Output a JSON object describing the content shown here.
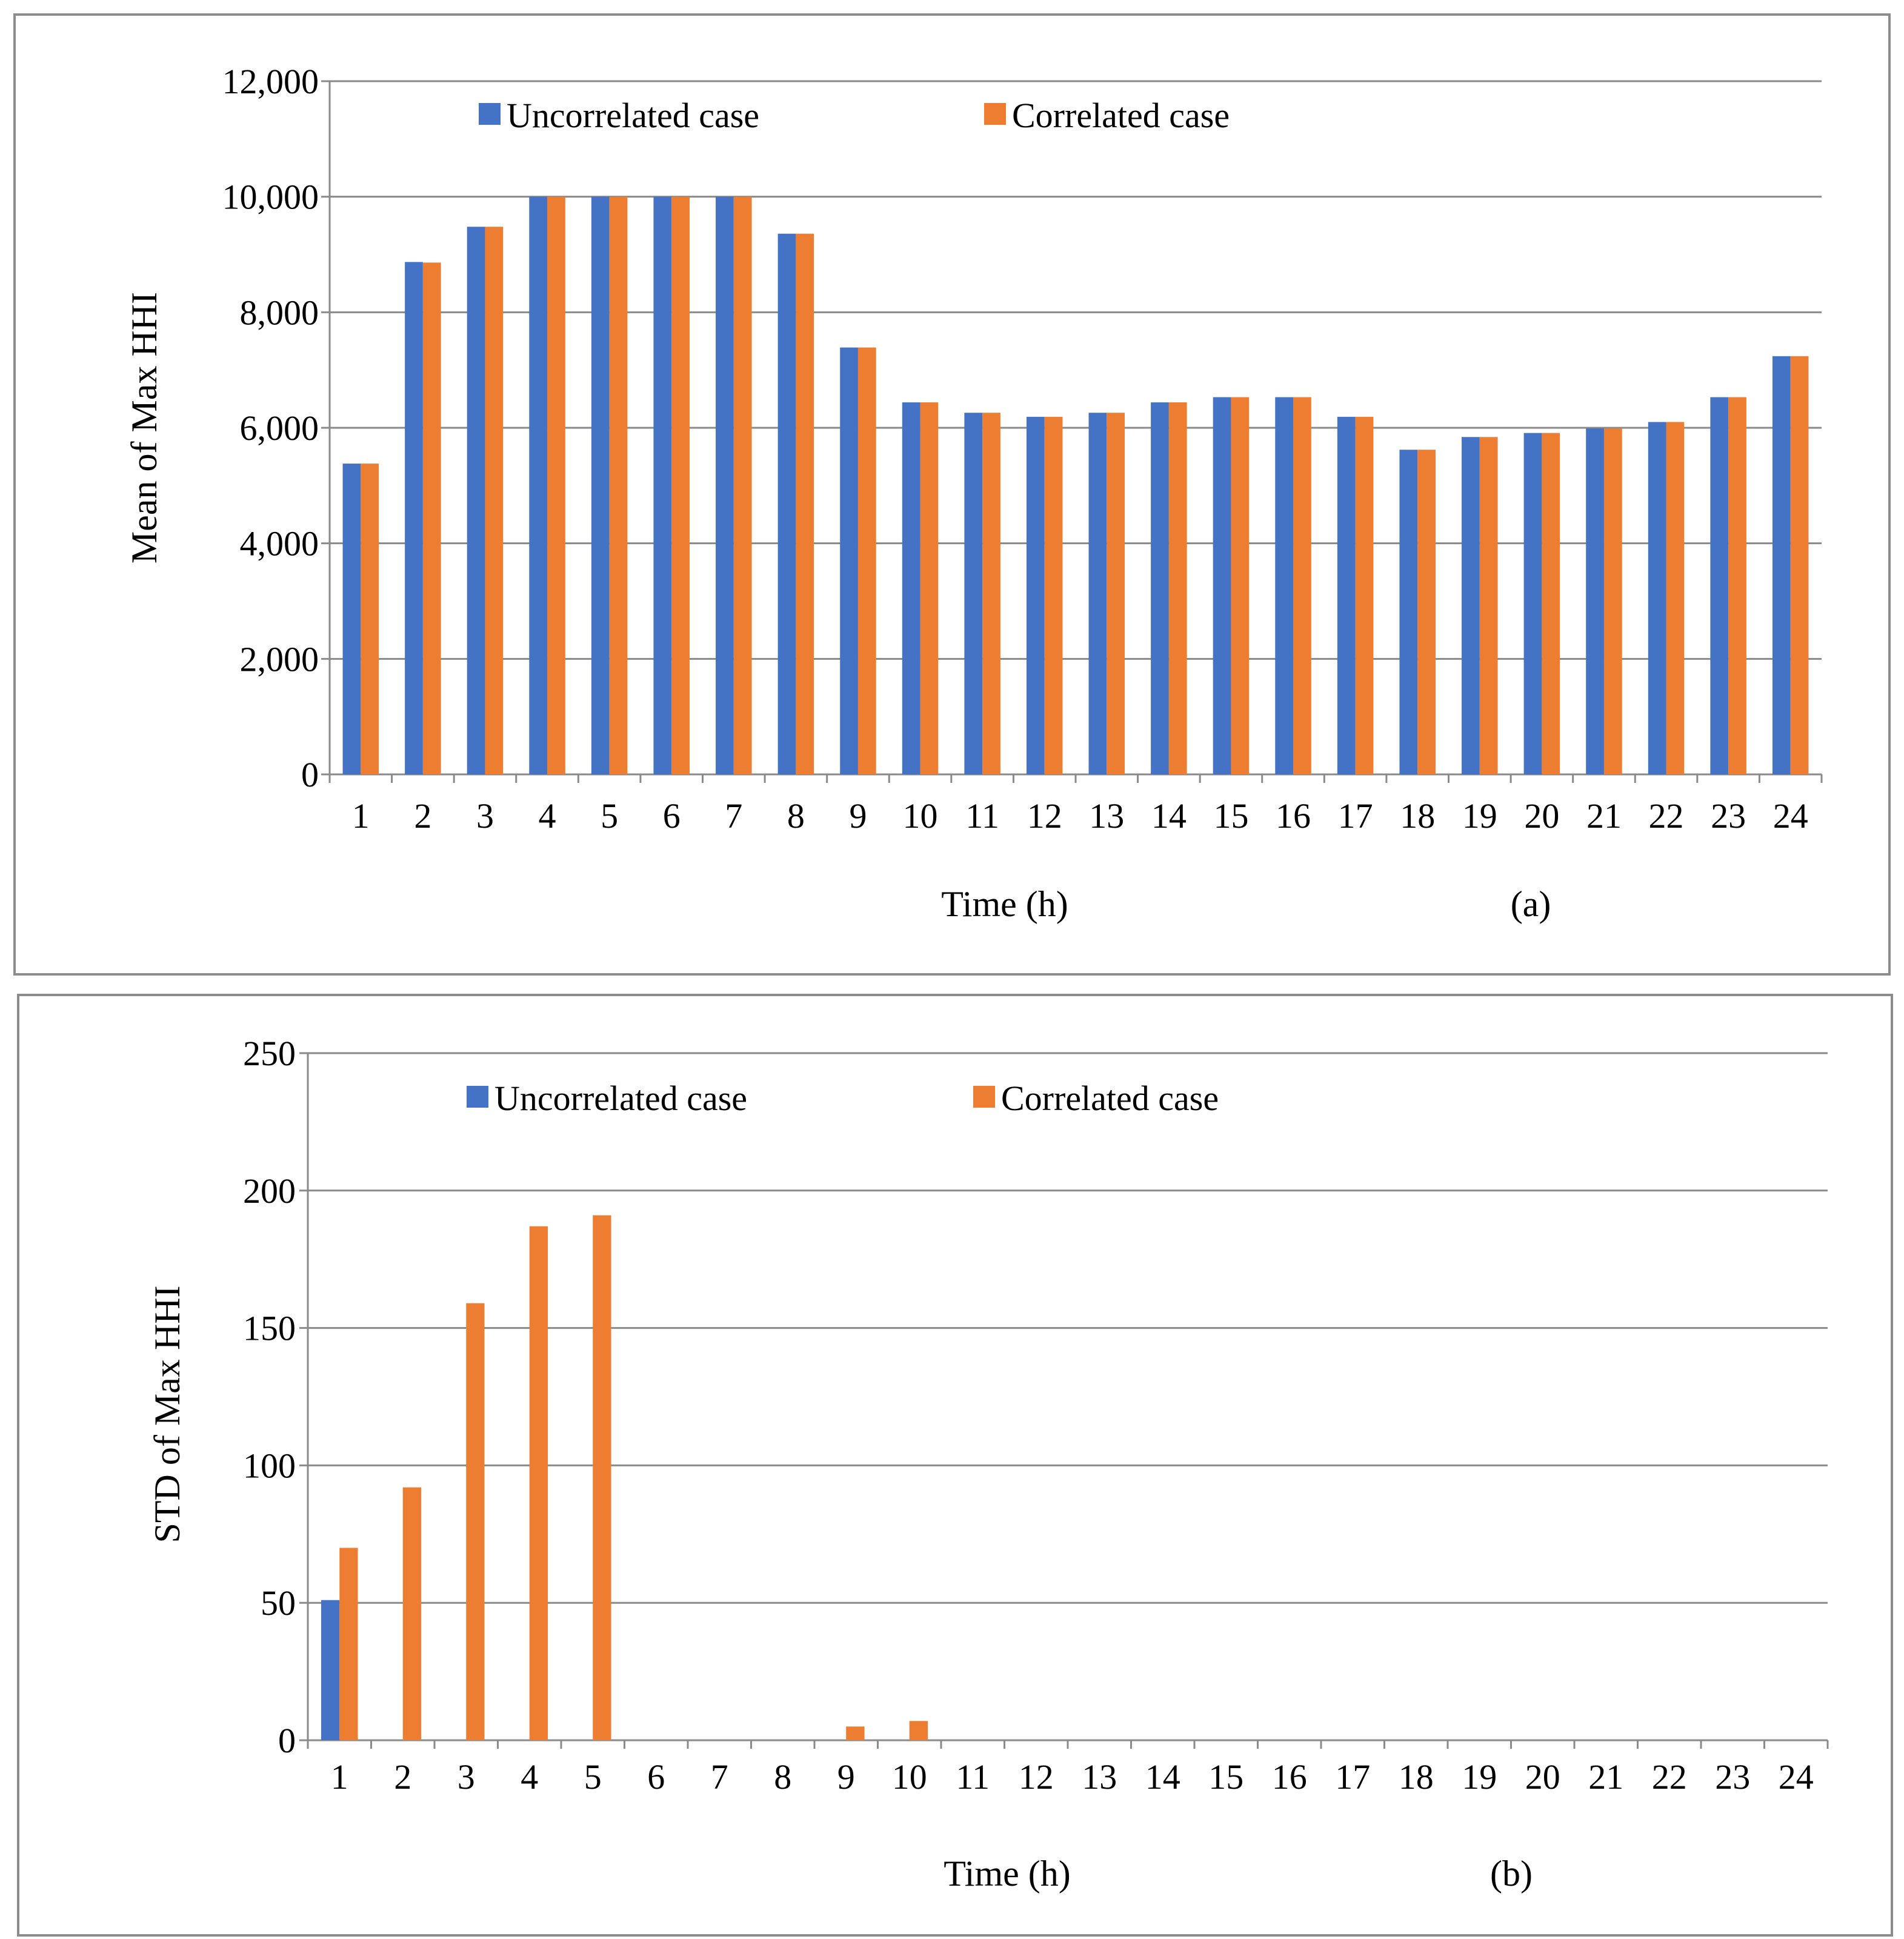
{
  "chart_data": [
    {
      "type": "bar",
      "panel_label": "(a)",
      "xlabel": "Time (h)",
      "ylabel": "Mean of Max HHI",
      "categories": [
        "1",
        "2",
        "3",
        "4",
        "5",
        "6",
        "7",
        "8",
        "9",
        "10",
        "11",
        "12",
        "13",
        "14",
        "15",
        "16",
        "17",
        "18",
        "19",
        "20",
        "21",
        "22",
        "23",
        "24"
      ],
      "ylim": [
        0,
        12000
      ],
      "yticks": [
        0,
        2000,
        4000,
        6000,
        8000,
        10000,
        12000
      ],
      "ytick_labels": [
        "0",
        "2,000",
        "4,000",
        "6,000",
        "8,000",
        "10,000",
        "12,000"
      ],
      "grid": true,
      "legend_position": "top-left",
      "series": [
        {
          "name": "Uncorrelated case",
          "color": "#4472C4",
          "values": [
            5380,
            8870,
            9480,
            10000,
            10000,
            10000,
            10000,
            9360,
            7390,
            6440,
            6260,
            6190,
            6260,
            6440,
            6530,
            6530,
            6190,
            5620,
            5840,
            5910,
            5990,
            6100,
            6530,
            7240
          ]
        },
        {
          "name": "Correlated case",
          "color": "#ED7D31",
          "values": [
            5380,
            8860,
            9480,
            10000,
            10000,
            10000,
            10000,
            9360,
            7390,
            6440,
            6260,
            6190,
            6260,
            6440,
            6530,
            6530,
            6190,
            5620,
            5840,
            5910,
            5990,
            6100,
            6530,
            7240
          ]
        }
      ]
    },
    {
      "type": "bar",
      "panel_label": "(b)",
      "xlabel": "Time (h)",
      "ylabel": "STD of Max HHI",
      "categories": [
        "1",
        "2",
        "3",
        "4",
        "5",
        "6",
        "7",
        "8",
        "9",
        "10",
        "11",
        "12",
        "13",
        "14",
        "15",
        "16",
        "17",
        "18",
        "19",
        "20",
        "21",
        "22",
        "23",
        "24"
      ],
      "ylim": [
        0,
        250
      ],
      "yticks": [
        0,
        50,
        100,
        150,
        200,
        250
      ],
      "ytick_labels": [
        "0",
        "50",
        "100",
        "150",
        "200",
        "250"
      ],
      "grid": true,
      "legend_position": "top-left",
      "series": [
        {
          "name": "Uncorrelated case",
          "color": "#4472C4",
          "values": [
            51,
            0,
            0,
            0,
            0,
            0,
            0,
            0,
            0,
            0,
            0,
            0,
            0,
            0,
            0,
            0,
            0,
            0,
            0,
            0,
            0,
            0,
            0,
            0
          ]
        },
        {
          "name": "Correlated case",
          "color": "#ED7D31",
          "values": [
            70,
            92,
            159,
            187,
            191,
            0,
            0,
            0,
            5,
            7,
            0,
            0,
            0,
            0,
            0,
            0,
            0,
            0,
            0,
            0,
            0,
            0,
            0,
            0
          ]
        }
      ]
    }
  ]
}
